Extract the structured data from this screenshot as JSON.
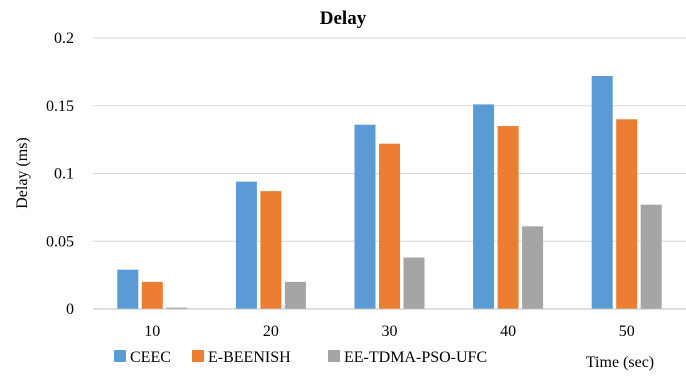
{
  "chart_data": {
    "type": "bar",
    "title": "Delay",
    "xlabel": "Time (sec)",
    "ylabel": "Delay (ms)",
    "categories": [
      "10",
      "20",
      "30",
      "40",
      "50"
    ],
    "series": [
      {
        "name": "CEEC",
        "color": "#5b9bd5",
        "values": [
          0.029,
          0.094,
          0.136,
          0.151,
          0.172
        ]
      },
      {
        "name": "E-BEENISH",
        "color": "#ed7d31",
        "values": [
          0.02,
          0.087,
          0.122,
          0.135,
          0.14
        ]
      },
      {
        "name": "EE-TDMA-PSO-UFC",
        "color": "#a5a5a5",
        "values": [
          0.001,
          0.02,
          0.038,
          0.061,
          0.077
        ]
      }
    ],
    "ylim": [
      0,
      0.2
    ],
    "yticks": [
      "0",
      "0.05",
      "0.1",
      "0.15",
      "0.2"
    ],
    "grid": true,
    "legend": "bottom"
  }
}
